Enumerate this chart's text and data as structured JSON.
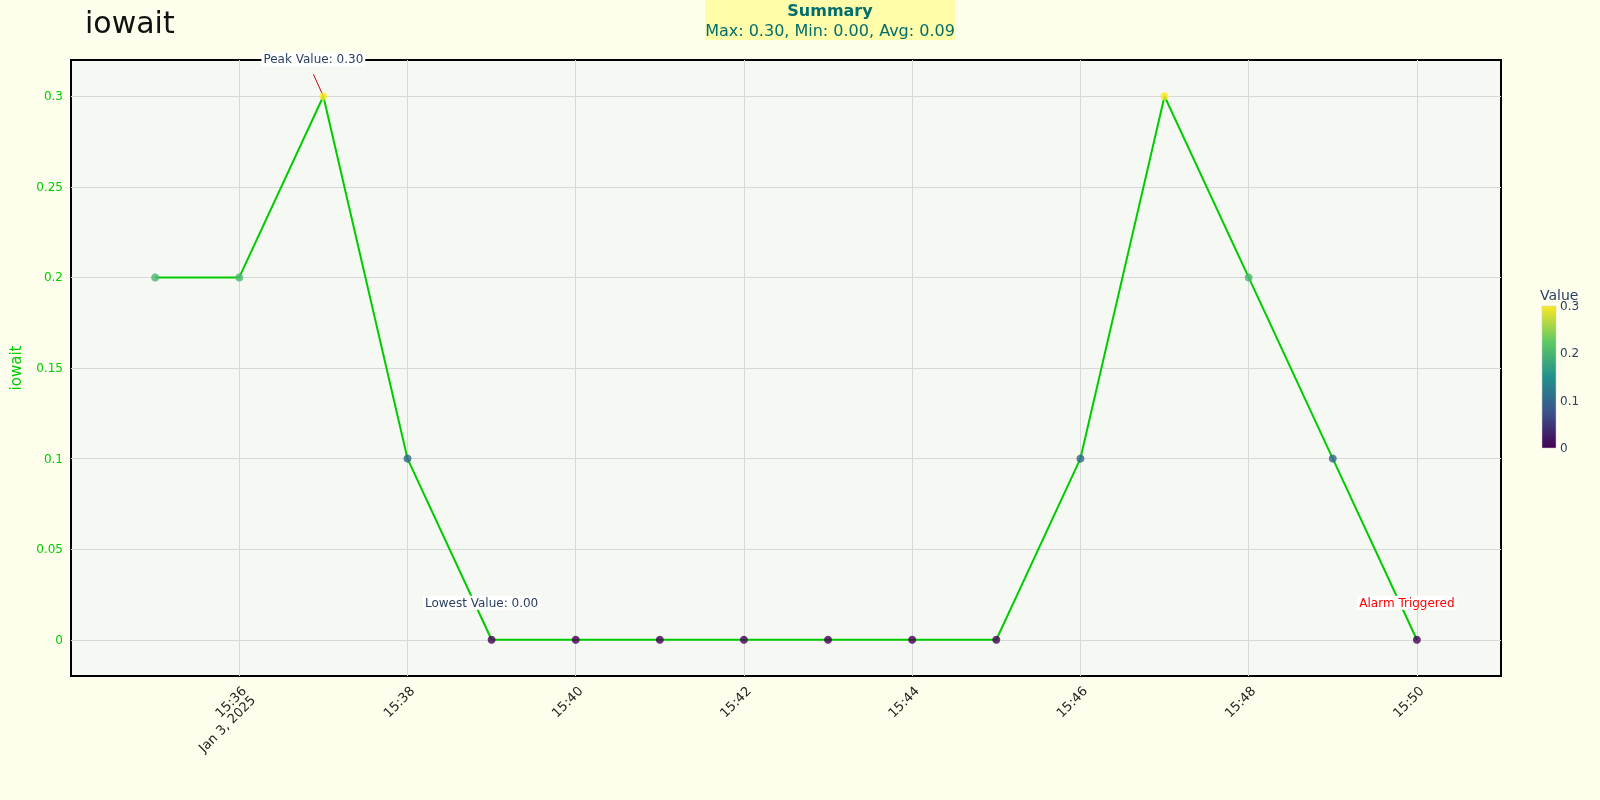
{
  "chart_data": {
    "type": "line",
    "title": "iowait",
    "ylabel": "iowait",
    "clabel": "Value",
    "annotations": [
      {
        "text": "Peak Value: 0.30",
        "x": "2025-01-03T15:37",
        "y": 0.3
      },
      {
        "text": "Lowest Value: 0.00",
        "x": "2025-01-03T15:39",
        "y": 0
      },
      {
        "text": "Alarm Triggered",
        "x": "2025-01-03T15:50",
        "y": 0
      },
      "Summary",
      "Max: 0.30, Min: 0.00, Avg: 0.09"
    ],
    "x": [
      "2025-01-03T15:35",
      "2025-01-03T15:36",
      "2025-01-03T15:37",
      "2025-01-03T15:38",
      "2025-01-03T15:39",
      "2025-01-03T15:40",
      "2025-01-03T15:41",
      "2025-01-03T15:42",
      "2025-01-03T15:43",
      "2025-01-03T15:44",
      "2025-01-03T15:45",
      "2025-01-03T15:46",
      "2025-01-03T15:47",
      "2025-01-03T15:48",
      "2025-01-03T15:49",
      "2025-01-03T15:50"
    ],
    "series": [
      {
        "color": "#00cc00",
        "values": [
          0.2,
          0.2,
          0.3,
          0.1,
          0,
          0,
          0,
          0,
          0,
          0,
          0,
          0.1,
          0.3,
          0.2,
          0.1,
          0
        ]
      }
    ],
    "clim": [
      0,
      0.3
    ],
    "cticks": [
      0,
      0.1,
      0.2,
      0.3
    ],
    "xlim": [
      "2025-01-03T15:34",
      "2025-01-03T15:51"
    ],
    "xticks": [
      {
        "value": "2025-01-03T15:36",
        "label": "15:36\nJan 3, 2025"
      },
      {
        "value": "2025-01-03T15:38",
        "label": "15:38"
      },
      {
        "value": "2025-01-03T15:40",
        "label": "15:40"
      },
      {
        "value": "2025-01-03T15:42",
        "label": "15:42"
      },
      {
        "value": "2025-01-03T15:44",
        "label": "15:44"
      },
      {
        "value": "2025-01-03T15:46",
        "label": "15:46"
      },
      {
        "value": "2025-01-03T15:48",
        "label": "15:48"
      },
      {
        "value": "2025-01-03T15:50",
        "label": "15:50"
      }
    ],
    "ylim": [
      -0.02,
      0.32
    ],
    "yticks": [
      0,
      0.05,
      0.1,
      0.15,
      0.2,
      0.25,
      0.3
    ],
    "grid": true,
    "marker": "circle",
    "line_style": "solid"
  }
}
